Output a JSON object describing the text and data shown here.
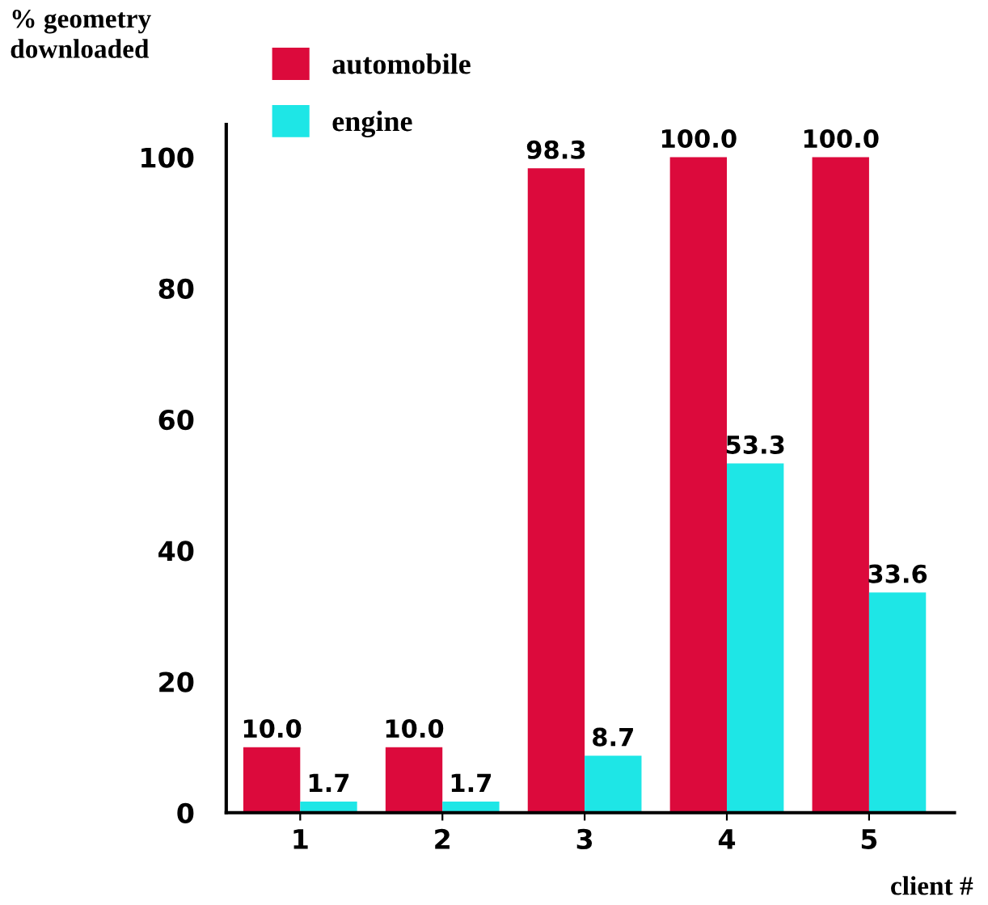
{
  "chart_data": {
    "type": "bar",
    "ylabel": "% geometry\ndownloaded",
    "xlabel": "client #",
    "categories": [
      "1",
      "2",
      "3",
      "4",
      "5"
    ],
    "series": [
      {
        "name": "automobile",
        "color": "#dc0a3c",
        "values": [
          10.0,
          10.0,
          98.3,
          100.0,
          100.0
        ],
        "value_labels": [
          "10.0",
          "10.0",
          "98.3",
          "100.0",
          "100.0"
        ]
      },
      {
        "name": "engine",
        "color": "#1ee6e6",
        "values": [
          1.7,
          1.7,
          8.7,
          53.3,
          33.6
        ],
        "value_labels": [
          "1.7",
          "1.7",
          "8.7",
          "53.3",
          "33.6"
        ]
      }
    ],
    "ylim": [
      0,
      105
    ],
    "yticks": [
      0,
      20,
      40,
      60,
      80,
      100
    ],
    "legend": "top left",
    "grid": false
  }
}
